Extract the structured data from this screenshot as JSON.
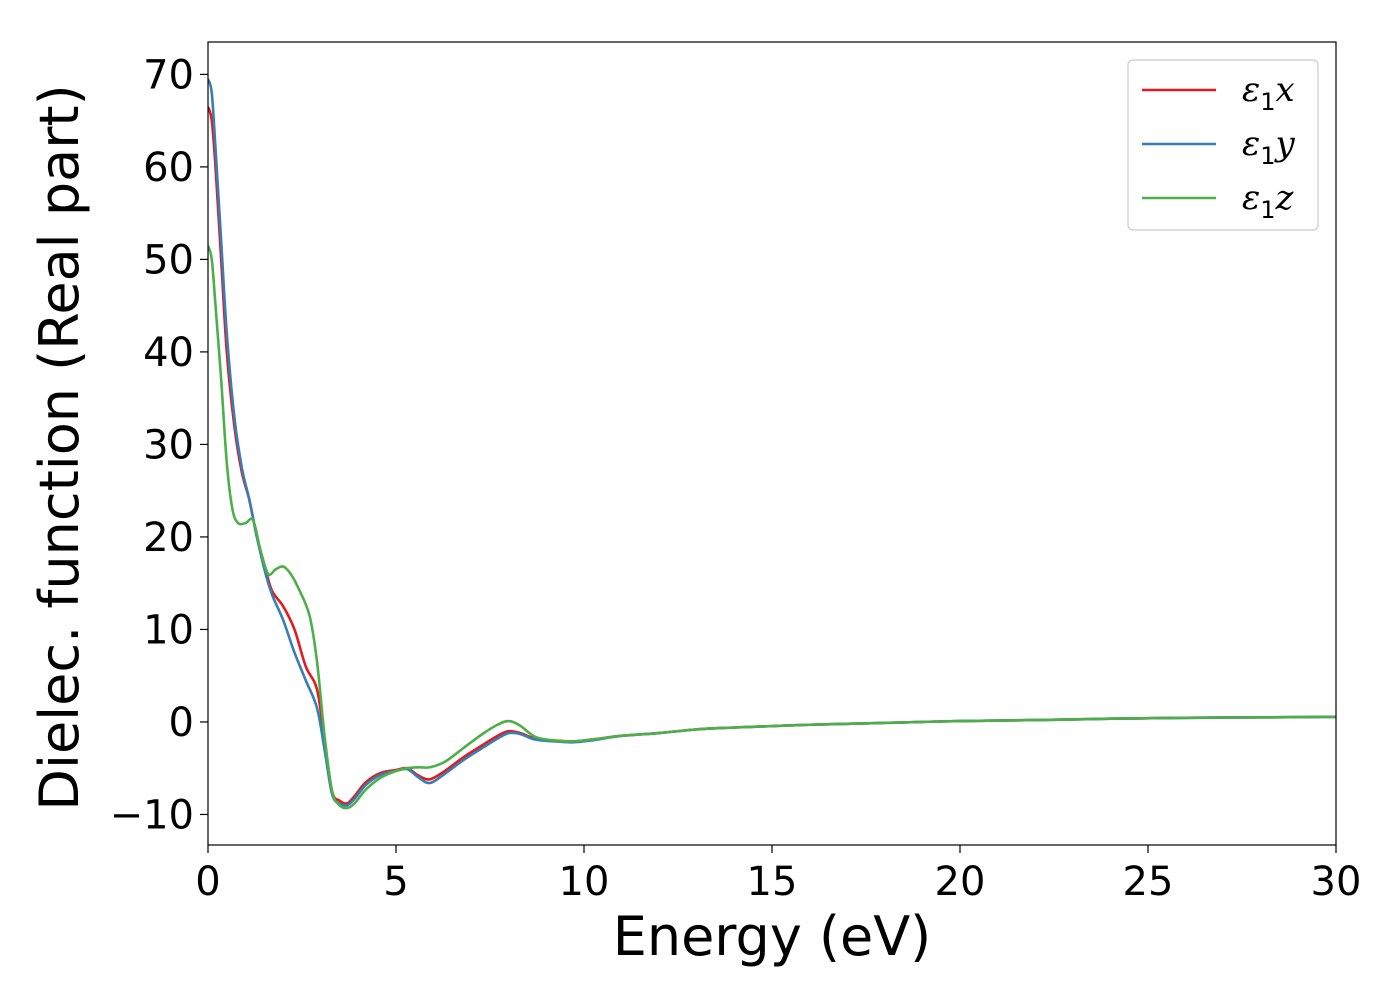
{
  "chart_data": {
    "type": "line",
    "xlabel": "Energy (eV)",
    "ylabel": "Dielec. function (Real part)",
    "xlim": [
      0,
      30
    ],
    "ylim": [
      -13.3,
      73.5
    ],
    "xticks": [
      0,
      5,
      10,
      15,
      20,
      25,
      30
    ],
    "yticks": [
      -10,
      0,
      10,
      20,
      30,
      40,
      50,
      60,
      70
    ],
    "xtick_labels": [
      "0",
      "5",
      "10",
      "15",
      "20",
      "25",
      "30"
    ],
    "ytick_labels": [
      "−10",
      "0",
      "10",
      "20",
      "30",
      "40",
      "50",
      "60",
      "70"
    ],
    "grid": false,
    "legend_position": "top-right",
    "series": [
      {
        "name": "ε1x",
        "label_main": "ε",
        "label_sub": "1",
        "label_tail": "x",
        "color": "#e41a1c",
        "x": [
          0,
          0.1,
          0.2,
          0.35,
          0.5,
          0.7,
          0.9,
          1.1,
          1.3,
          1.5,
          1.7,
          2.0,
          2.3,
          2.6,
          2.9,
          3.1,
          3.3,
          3.5,
          3.7,
          3.9,
          4.2,
          4.6,
          5.0,
          5.3,
          5.6,
          5.9,
          6.3,
          6.8,
          7.3,
          7.7,
          8.0,
          8.3,
          8.7,
          9.2,
          9.7,
          10.2,
          11,
          12,
          13,
          14,
          15,
          16,
          17,
          18,
          20,
          22,
          24,
          26,
          28,
          30
        ],
        "y": [
          66.5,
          65,
          60,
          50,
          40,
          32,
          27,
          24,
          20,
          17,
          14.2,
          12.5,
          10,
          6,
          3.5,
          -2,
          -7.5,
          -8.5,
          -8.8,
          -8.0,
          -6.5,
          -5.5,
          -5.2,
          -5.0,
          -5.8,
          -6.2,
          -5.3,
          -3.8,
          -2.5,
          -1.5,
          -1.0,
          -1.2,
          -1.8,
          -2.0,
          -2.1,
          -1.9,
          -1.5,
          -1.2,
          -0.8,
          -0.6,
          -0.45,
          -0.3,
          -0.2,
          -0.1,
          0.1,
          0.2,
          0.35,
          0.45,
          0.5,
          0.55
        ]
      },
      {
        "name": "ε1y",
        "label_main": "ε",
        "label_sub": "1",
        "label_tail": "y",
        "color": "#377eb8",
        "x": [
          0,
          0.1,
          0.2,
          0.35,
          0.5,
          0.7,
          0.9,
          1.1,
          1.3,
          1.5,
          1.7,
          2.0,
          2.3,
          2.6,
          2.9,
          3.1,
          3.3,
          3.5,
          3.7,
          3.9,
          4.2,
          4.6,
          5.0,
          5.3,
          5.6,
          5.9,
          6.3,
          6.8,
          7.3,
          7.7,
          8.0,
          8.3,
          8.7,
          9.2,
          9.7,
          10.2,
          11,
          12,
          13,
          14,
          15,
          16,
          17,
          18,
          20,
          22,
          24,
          26,
          28,
          30
        ],
        "y": [
          69.5,
          68,
          62,
          52,
          42,
          33,
          27.5,
          24,
          20,
          16.5,
          13.8,
          11,
          7.5,
          4.5,
          1.5,
          -3,
          -7.8,
          -8.8,
          -9.0,
          -8.3,
          -6.8,
          -5.7,
          -5.3,
          -5.1,
          -6.0,
          -6.6,
          -5.6,
          -4.1,
          -2.8,
          -1.8,
          -1.2,
          -1.3,
          -1.9,
          -2.1,
          -2.2,
          -2.0,
          -1.5,
          -1.2,
          -0.8,
          -0.6,
          -0.45,
          -0.3,
          -0.2,
          -0.1,
          0.1,
          0.2,
          0.35,
          0.45,
          0.5,
          0.55
        ]
      },
      {
        "name": "ε1z",
        "label_main": "ε",
        "label_sub": "1",
        "label_tail": "z",
        "color": "#4daf4a",
        "x": [
          0,
          0.1,
          0.2,
          0.35,
          0.5,
          0.65,
          0.8,
          1.0,
          1.2,
          1.4,
          1.6,
          1.8,
          2.0,
          2.2,
          2.4,
          2.7,
          2.9,
          3.1,
          3.3,
          3.5,
          3.7,
          3.9,
          4.2,
          4.6,
          5.0,
          5.3,
          5.6,
          5.9,
          6.3,
          6.8,
          7.3,
          7.7,
          8.0,
          8.3,
          8.7,
          9.2,
          9.7,
          10.2,
          11,
          12,
          13,
          14,
          15,
          16,
          17,
          18,
          20,
          22,
          24,
          26,
          28,
          30
        ],
        "y": [
          51.5,
          50,
          45,
          37,
          28,
          23,
          21.5,
          21.5,
          21.8,
          18.5,
          16,
          16.5,
          16.8,
          16,
          14.5,
          11.5,
          6.5,
          -1.5,
          -7.5,
          -9.0,
          -9.3,
          -8.8,
          -7.3,
          -6.0,
          -5.3,
          -5.0,
          -4.9,
          -4.9,
          -4.3,
          -2.8,
          -1.3,
          -0.3,
          0.1,
          -0.4,
          -1.6,
          -2.0,
          -2.1,
          -1.9,
          -1.5,
          -1.2,
          -0.8,
          -0.6,
          -0.45,
          -0.3,
          -0.2,
          -0.1,
          0.1,
          0.2,
          0.35,
          0.45,
          0.5,
          0.55
        ]
      }
    ]
  }
}
